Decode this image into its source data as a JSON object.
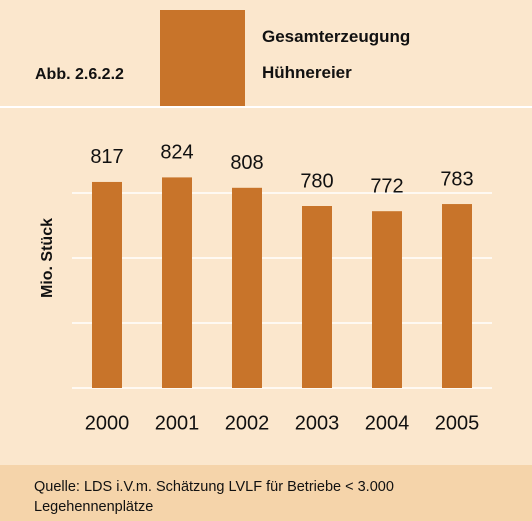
{
  "figure_label": "Abb. 2.6.2.2",
  "source": "Quelle: LDS i.V.m. Schätzung LVLF für Betriebe < 3.000 Legehennenplätze",
  "chart_data": {
    "type": "bar",
    "title": "Gesamterzeugung Hühnereier",
    "ylabel": "Mio. Stück",
    "categories": [
      "2000",
      "2001",
      "2002",
      "2003",
      "2004",
      "2005"
    ],
    "values": [
      817,
      824,
      808,
      780,
      772,
      783
    ],
    "color": "#c8742a",
    "ylim": [
      500,
      900
    ],
    "yticks": [
      500,
      600,
      700,
      800
    ],
    "grid": true
  }
}
